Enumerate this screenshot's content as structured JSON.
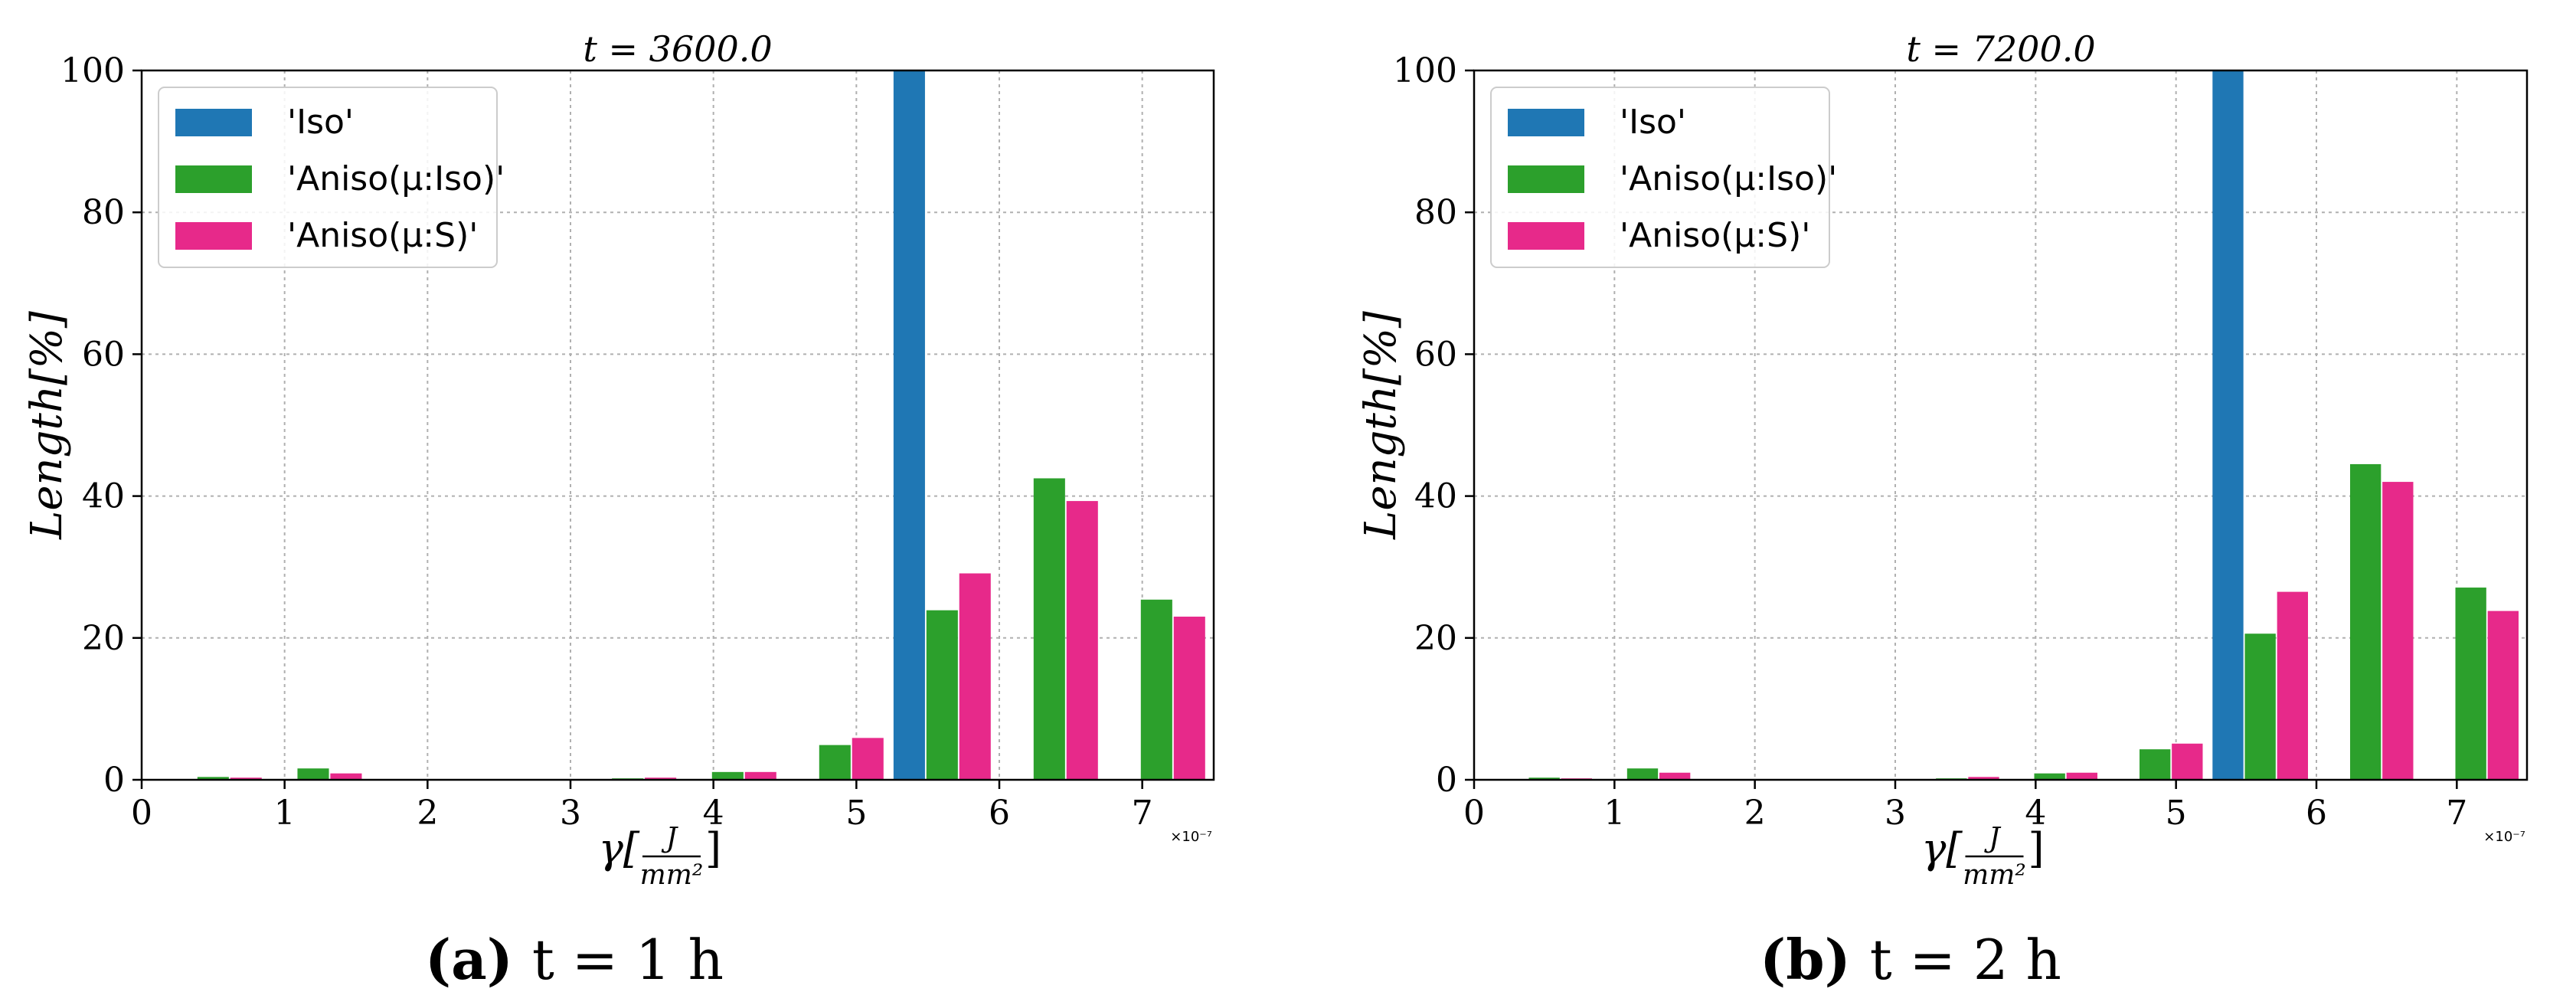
{
  "colors": {
    "iso": "#1f77b4",
    "aniso_iso": "#2ca02c",
    "aniso_s": "#e7298a",
    "grid": "#b0b0b0",
    "axis": "#000000"
  },
  "chart_data": [
    {
      "type": "bar",
      "title": "t = 3600.0",
      "caption_prefix": "(a)",
      "caption_text": "t = 1 h",
      "xlabel_main": "γ[",
      "xlabel_num": "J",
      "xlabel_den": "mm²",
      "xlabel_close": "]",
      "ylabel": "Length[%]",
      "x_exponent": "×10⁻⁷",
      "xlim": [
        0,
        7.5
      ],
      "ylim": [
        0,
        100
      ],
      "xticks": [
        0,
        1,
        2,
        3,
        4,
        5,
        6,
        7
      ],
      "yticks": [
        0,
        20,
        40,
        60,
        80,
        100
      ],
      "grid": true,
      "legend_position": "top-left",
      "series": [
        {
          "name": "'Iso'",
          "color_key": "iso",
          "x": [
            5.37
          ],
          "values": [
            100.0
          ]
        },
        {
          "name": "'Aniso(μ:Iso)'",
          "color_key": "aniso_iso",
          "x": [
            0.5,
            1.2,
            3.4,
            4.1,
            4.85,
            5.6,
            6.35,
            7.1
          ],
          "values": [
            0.4,
            1.6,
            0.2,
            1.1,
            4.9,
            23.9,
            42.5,
            25.4
          ]
        },
        {
          "name": "'Aniso(μ:S)'",
          "color_key": "aniso_s",
          "x": [
            0.73,
            1.43,
            3.63,
            4.33,
            5.08,
            5.83,
            6.58,
            7.33
          ],
          "values": [
            0.3,
            0.9,
            0.3,
            1.1,
            5.9,
            29.1,
            39.3,
            23.0
          ]
        }
      ]
    },
    {
      "type": "bar",
      "title": "t = 7200.0",
      "caption_prefix": "(b)",
      "caption_text": "t = 2 h",
      "xlabel_main": "γ[",
      "xlabel_num": "J",
      "xlabel_den": "mm²",
      "xlabel_close": "]",
      "ylabel": "Length[%]",
      "x_exponent": "×10⁻⁷",
      "xlim": [
        0,
        7.5
      ],
      "ylim": [
        0,
        100
      ],
      "xticks": [
        0,
        1,
        2,
        3,
        4,
        5,
        6,
        7
      ],
      "yticks": [
        0,
        20,
        40,
        60,
        80,
        100
      ],
      "grid": true,
      "legend_position": "top-left",
      "series": [
        {
          "name": "'Iso'",
          "color_key": "iso",
          "x": [
            5.37
          ],
          "values": [
            100.0
          ]
        },
        {
          "name": "'Aniso(μ:Iso)'",
          "color_key": "aniso_iso",
          "x": [
            0.5,
            1.2,
            3.4,
            4.1,
            4.85,
            5.6,
            6.35,
            7.1
          ],
          "values": [
            0.3,
            1.6,
            0.2,
            0.9,
            4.3,
            20.6,
            44.5,
            27.1
          ]
        },
        {
          "name": "'Aniso(μ:S)'",
          "color_key": "aniso_s",
          "x": [
            0.73,
            1.43,
            3.63,
            4.33,
            5.08,
            5.83,
            6.58,
            7.33
          ],
          "values": [
            0.2,
            1.0,
            0.4,
            1.0,
            5.1,
            26.5,
            42.0,
            23.8
          ]
        }
      ]
    }
  ]
}
